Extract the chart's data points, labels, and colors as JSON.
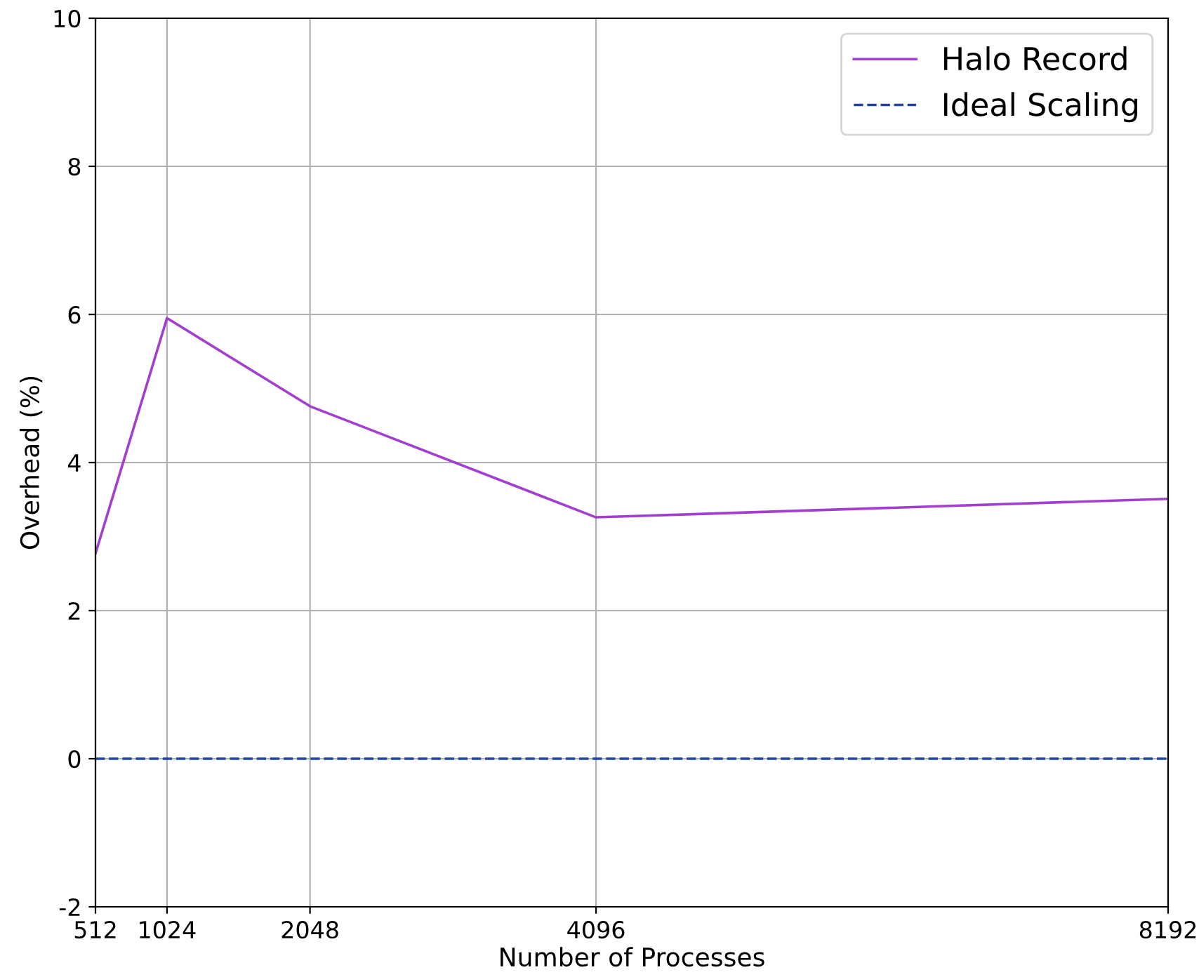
{
  "chart_data": {
    "type": "line",
    "xlabel": "Number of Processes",
    "ylabel": "Overhead (%)",
    "x": [
      512,
      1024,
      2048,
      4096,
      8192
    ],
    "series": [
      {
        "name": "Halo Record",
        "color": "#a23fd0",
        "values": [
          2.77,
          5.95,
          4.76,
          3.26,
          3.51
        ],
        "line_style": "solid"
      },
      {
        "name": "Ideal Scaling",
        "color": "#2544a0",
        "values": [
          0,
          0,
          0,
          0,
          0
        ],
        "line_style": "dashed"
      }
    ],
    "xlim": [
      512,
      8192
    ],
    "xticks": [
      512,
      1024,
      2048,
      4096,
      8192
    ],
    "ylim": [
      -2,
      10
    ],
    "yticks": [
      -2,
      0,
      2,
      4,
      6,
      8,
      10
    ],
    "grid": true,
    "legend": "top right",
    "marker": "none"
  }
}
